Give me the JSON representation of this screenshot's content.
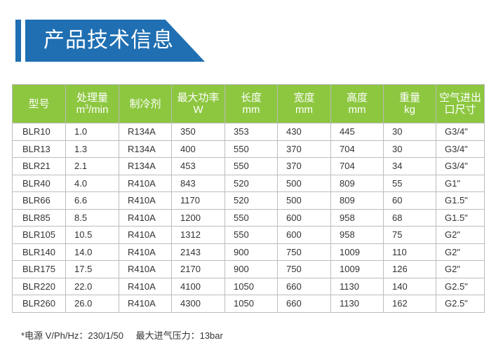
{
  "header": {
    "title": "产品技术信息",
    "accent_color": "#1f6fb2"
  },
  "table": {
    "header_color": "#8dc740",
    "columns": [
      {
        "line1": "型号",
        "line2": ""
      },
      {
        "line1": "处理量",
        "line2_pre": "m",
        "line2_sup": "3",
        "line2_post": "/min"
      },
      {
        "line1": "制冷剂",
        "line2": ""
      },
      {
        "line1": "最大功率",
        "line2": "W"
      },
      {
        "line1": "长度",
        "line2": "mm"
      },
      {
        "line1": "宽度",
        "line2": "mm"
      },
      {
        "line1": "高度",
        "line2": "mm"
      },
      {
        "line1": "重量",
        "line2": "kg"
      },
      {
        "line1": "空气进出",
        "line2": "口尺寸"
      }
    ],
    "rows": [
      [
        "BLR10",
        "1.0",
        "R134A",
        "350",
        "353",
        "430",
        "445",
        "30",
        "G3/4\""
      ],
      [
        "BLR13",
        "1.3",
        "R134A",
        "400",
        "550",
        "370",
        "704",
        "30",
        "G3/4\""
      ],
      [
        "BLR21",
        "2.1",
        "R134A",
        "453",
        "550",
        "370",
        "704",
        "34",
        "G3/4\""
      ],
      [
        "BLR40",
        "4.0",
        "R410A",
        "843",
        "520",
        "500",
        "809",
        "55",
        "G1\""
      ],
      [
        "BLR66",
        "6.6",
        "R410A",
        "1170",
        "520",
        "500",
        "809",
        "60",
        "G1.5\""
      ],
      [
        "BLR85",
        "8.5",
        "R410A",
        "1200",
        "550",
        "600",
        "958",
        "68",
        "G1.5\""
      ],
      [
        "BLR105",
        "10.5",
        "R410A",
        "1312",
        "550",
        "600",
        "958",
        "75",
        "G2\""
      ],
      [
        "BLR140",
        "14.0",
        "R410A",
        "2143",
        "900",
        "750",
        "1009",
        "110",
        "G2\""
      ],
      [
        "BLR175",
        "17.5",
        "R410A",
        "2170",
        "900",
        "750",
        "1009",
        "126",
        "G2\""
      ],
      [
        "BLR220",
        "22.0",
        "R410A",
        "4100",
        "1050",
        "660",
        "1130",
        "140",
        "G2.5\""
      ],
      [
        "BLR260",
        "26.0",
        "R410A",
        "4300",
        "1050",
        "660",
        "1130",
        "162",
        "G2.5\""
      ]
    ]
  },
  "footnote": {
    "power": "*电源 V/Ph/Hz：230/1/50",
    "pressure": "最大进气压力：13bar"
  }
}
